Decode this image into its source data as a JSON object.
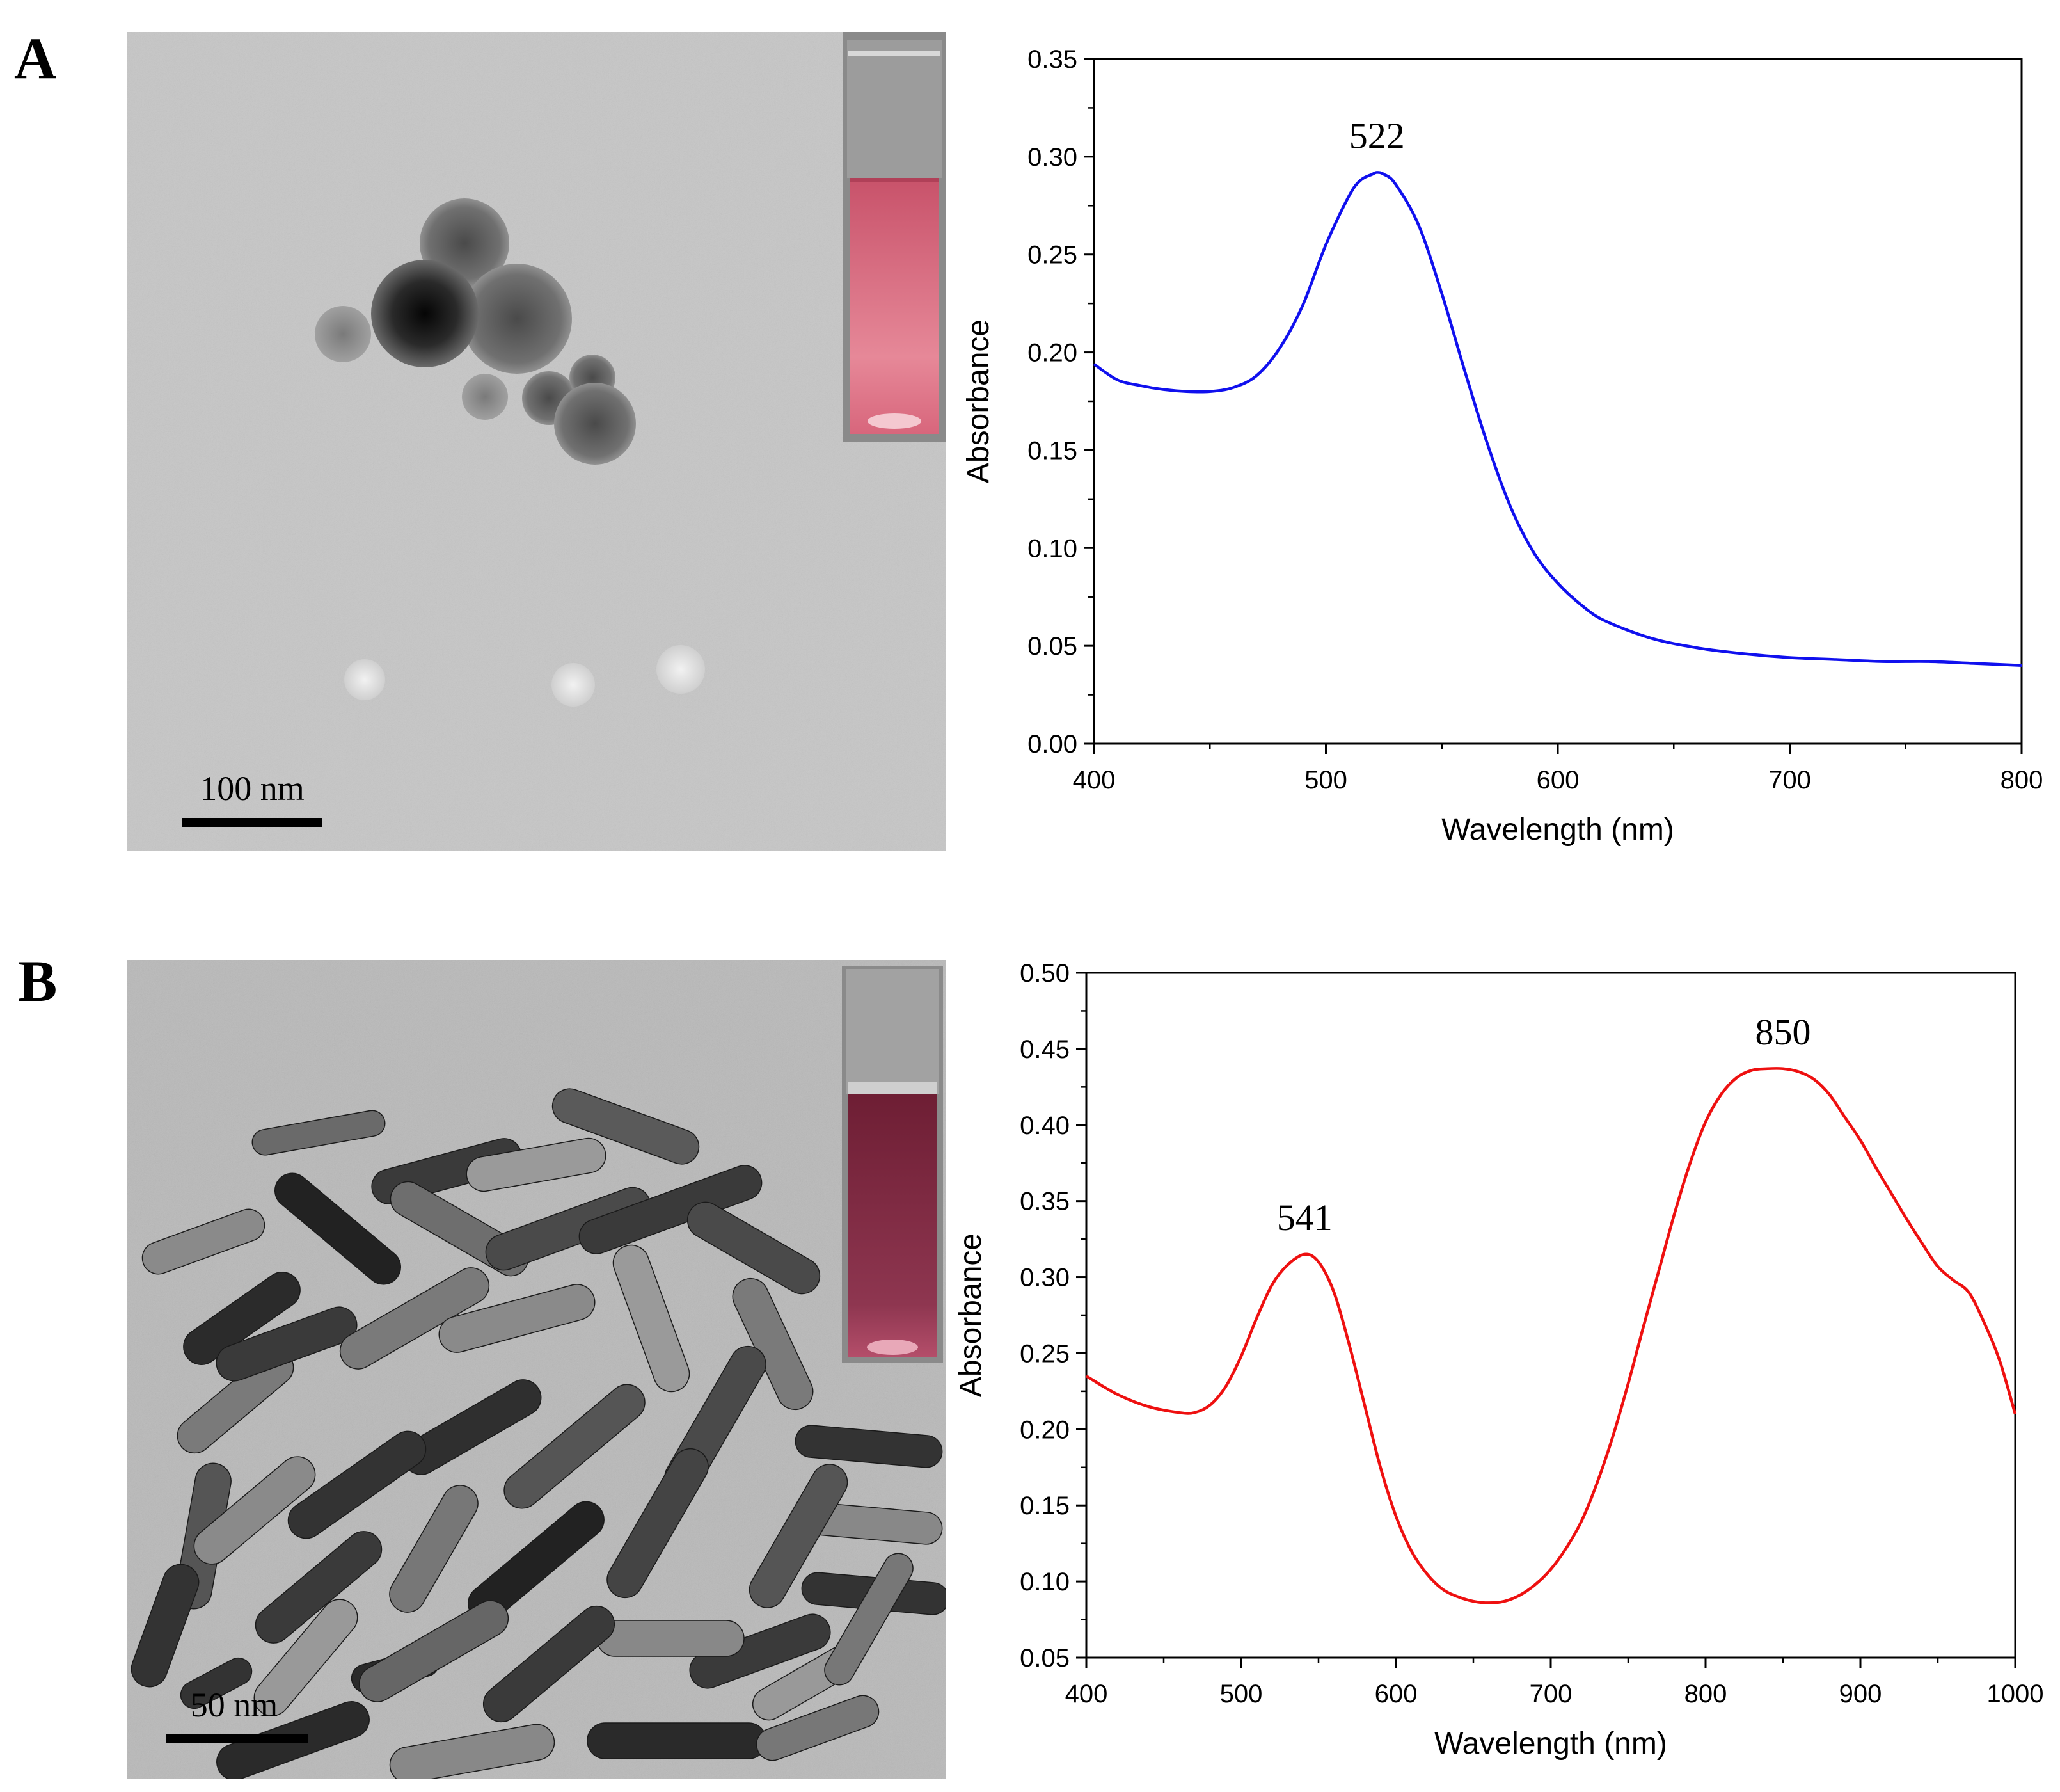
{
  "panel_A": {
    "label": "A",
    "tem_scale_label": "100 nm",
    "tem_description_icon": "tem-nanospheres-image",
    "cuvette_color": "#d96b80"
  },
  "panel_B": {
    "label": "B",
    "tem_scale_label": "50 nm",
    "tem_description_icon": "tem-nanorods-image",
    "cuvette_color": "#8c2a45"
  },
  "chart_data": [
    {
      "type": "line",
      "title": "",
      "xlabel": "Wavelength (nm)",
      "ylabel": "Absorbance",
      "xlim": [
        400,
        800
      ],
      "ylim": [
        0,
        0.35
      ],
      "xticks": [
        400,
        500,
        600,
        700,
        800
      ],
      "yticks": [
        "0.00",
        "0.05",
        "0.10",
        "0.15",
        "0.20",
        "0.25",
        "0.30",
        "0.35"
      ],
      "grid": false,
      "color": "#1010ee",
      "series": [
        {
          "x": [
            400,
            410,
            420,
            430,
            440,
            450,
            460,
            470,
            480,
            490,
            500,
            510,
            515,
            520,
            522,
            525,
            530,
            540,
            550,
            560,
            570,
            580,
            590,
            600,
            610,
            620,
            640,
            660,
            680,
            700,
            720,
            740,
            760,
            780,
            800
          ],
          "y": [
            0.194,
            0.186,
            0.183,
            0.181,
            0.18,
            0.18,
            0.182,
            0.188,
            0.202,
            0.224,
            0.255,
            0.28,
            0.288,
            0.291,
            0.292,
            0.291,
            0.286,
            0.265,
            0.23,
            0.19,
            0.152,
            0.12,
            0.097,
            0.082,
            0.071,
            0.063,
            0.054,
            0.049,
            0.046,
            0.044,
            0.043,
            0.042,
            0.042,
            0.041,
            0.04
          ]
        }
      ],
      "annotations": [
        {
          "text": "522",
          "x": 522,
          "y": 0.292
        }
      ]
    },
    {
      "type": "line",
      "title": "",
      "xlabel": "Wavelength (nm)",
      "ylabel": "Absorbance",
      "xlim": [
        400,
        1000
      ],
      "ylim": [
        0.05,
        0.5
      ],
      "xticks": [
        400,
        500,
        600,
        700,
        800,
        900,
        1000
      ],
      "yticks": [
        "0.05",
        "0.10",
        "0.15",
        "0.20",
        "0.25",
        "0.30",
        "0.35",
        "0.40",
        "0.45",
        "0.50"
      ],
      "grid": false,
      "color": "#ee1010",
      "series": [
        {
          "x": [
            400,
            420,
            440,
            460,
            470,
            480,
            490,
            500,
            510,
            520,
            530,
            541,
            550,
            560,
            570,
            580,
            590,
            600,
            610,
            620,
            630,
            640,
            650,
            660,
            670,
            680,
            690,
            700,
            710,
            720,
            730,
            740,
            750,
            760,
            770,
            780,
            790,
            800,
            810,
            820,
            830,
            840,
            850,
            860,
            870,
            880,
            890,
            900,
            910,
            920,
            930,
            940,
            950,
            960,
            970,
            980,
            990,
            1000
          ],
          "y": [
            0.235,
            0.223,
            0.215,
            0.211,
            0.211,
            0.216,
            0.228,
            0.248,
            0.273,
            0.295,
            0.308,
            0.315,
            0.31,
            0.29,
            0.255,
            0.215,
            0.175,
            0.143,
            0.12,
            0.105,
            0.095,
            0.09,
            0.087,
            0.086,
            0.087,
            0.091,
            0.098,
            0.108,
            0.122,
            0.14,
            0.165,
            0.195,
            0.23,
            0.268,
            0.305,
            0.342,
            0.375,
            0.402,
            0.42,
            0.431,
            0.436,
            0.437,
            0.437,
            0.435,
            0.43,
            0.42,
            0.405,
            0.39,
            0.372,
            0.355,
            0.338,
            0.322,
            0.307,
            0.298,
            0.29,
            0.27,
            0.245,
            0.21
          ]
        }
      ],
      "annotations": [
        {
          "text": "541",
          "x": 541,
          "y": 0.315
        },
        {
          "text": "850",
          "x": 850,
          "y": 0.437
        }
      ]
    }
  ]
}
